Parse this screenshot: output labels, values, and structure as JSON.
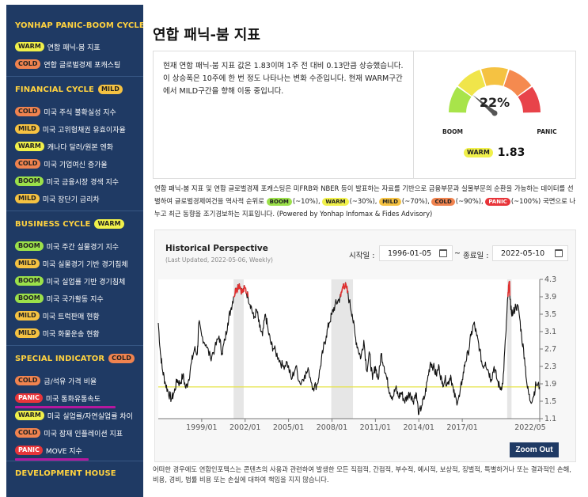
{
  "sidebar": {
    "sections": [
      {
        "title": "YONHAP PANIC-BOOM CYCLE",
        "tag": "",
        "items": [
          {
            "tag": "WARM",
            "label": "연합 패닉-붐 지표"
          },
          {
            "tag": "COLD",
            "label": "연합 글로벌경제 포캐스팅"
          }
        ]
      },
      {
        "title": "FINANCIAL CYCLE",
        "tag": "MILD",
        "items": [
          {
            "tag": "COLD",
            "label": "미국 주식 불확실성 지수"
          },
          {
            "tag": "MILD",
            "label": "미국 고위험채권 유효이자율"
          },
          {
            "tag": "WARM",
            "label": "캐나다 달러/원본 엔화"
          },
          {
            "tag": "COLD",
            "label": "미국 기업여신 증가율"
          },
          {
            "tag": "BOOM",
            "label": "미국 금융시장 경색 지수"
          },
          {
            "tag": "MILD",
            "label": "미국 장단기 금리차"
          }
        ]
      },
      {
        "title": "BUSINESS CYCLE",
        "tag": "WARM",
        "items": [
          {
            "tag": "BOOM",
            "label": "미국 주간 실물경기 지수"
          },
          {
            "tag": "MILD",
            "label": "미국 실물경기 기반 경기침체"
          },
          {
            "tag": "BOOM",
            "label": "미국 실업률 기반 경기침체"
          },
          {
            "tag": "BOOM",
            "label": "미국 국가활동 지수"
          },
          {
            "tag": "MILD",
            "label": "미국 트럭판매 현황"
          },
          {
            "tag": "MILD",
            "label": "미국 화물운송 현황"
          }
        ]
      },
      {
        "title": "SPECIAL INDICATOR",
        "tag": "COLD",
        "items": [
          {
            "tag": "COLD",
            "label": "금/석유 가격 비율"
          },
          {
            "tag": "PANIC",
            "label": "미국 통화유통속도"
          },
          {
            "tag": "WARM",
            "label": "미국 실업률/자연실업률 차이"
          },
          {
            "tag": "COLD",
            "label": "미국 잠재 인플레이션 지표"
          },
          {
            "tag": "PANIC",
            "label": "MOVE 지수"
          }
        ]
      },
      {
        "title": "DEVELOPMENT HOUSE",
        "tag": "",
        "items": []
      }
    ]
  },
  "main": {
    "title": "연합 패닉-붐 지표",
    "summary": "현재 연합 패닉-붐 지표 값은 1.83이며 1주 전 대비 0.13만큼 상승했습니다. 이 상승폭은 10주에 한 번 정도 나타나는 변화 수준입니다. 현재 WARM구간에서 MILD구간을 향해 이동 중입니다.",
    "gauge": {
      "percent": 22,
      "percent_label": "22%",
      "left_label": "BOOM",
      "right_label": "PANIC",
      "status": "WARM",
      "value": "1.83",
      "colors": [
        "#a8e44a",
        "#f0e54a",
        "#f5c242",
        "#f58a4f",
        "#e8434a"
      ]
    },
    "description": {
      "part1": "연합 패닉-붐 지표 및 연합 글로벌경제 포캐스팅은 미FRB와 NBER 등이 발표하는 자료를 기반으로 금융부문과 실물부문의 순환을 가능하는 데이터를 선별하여 글로벌경제여건을 역사적 순위로",
      "levels": [
        {
          "tag": "BOOM",
          "text": "(~10%),"
        },
        {
          "tag": "WARM",
          "text": "(~30%),"
        },
        {
          "tag": "MILD",
          "text": "(~70%),"
        },
        {
          "tag": "COLD",
          "text": "(~90%),"
        },
        {
          "tag": "PANIC",
          "text": "(~100%)"
        }
      ],
      "part2": "국면으로 나누고 최근 동향을 조기경보하는 지표입니다. (Powered by Yonhap Infomax & Fides Advisory)"
    },
    "chart_panel": {
      "title": "Historical Perspective",
      "updated": "(Last Updated, 2022-05-06, Weekly)",
      "start_label": "시작일 :",
      "start_date": "1996-01-05",
      "tilde": "~",
      "end_label": "종료일 :",
      "end_date": "2022-05-10",
      "zoom_out": "Zoom Out"
    },
    "disclaimer": "어떠한 경우에도 연합인포맥스는 콘텐츠의 사용과 관련하여 발생한 모든 직접적, 간접적, 부수적, 예시적, 보상적, 징벌적, 특별하거나 또는 결과적인 손해, 비용, 경비, 법률 비용 또는 손실에 대하여 책임을 지지 않습니다."
  },
  "chart_data": {
    "type": "line",
    "x_start": 1996.0,
    "x_end": 2022.35,
    "xticks": [
      "1999/01",
      "2002/01",
      "2005/01",
      "2008/01",
      "2011/01",
      "2014/01",
      "2017/01",
      "2022/05"
    ],
    "xtick_values": [
      1999.0,
      2002.0,
      2005.0,
      2008.0,
      2011.0,
      2014.0,
      2017.0,
      2022.35
    ],
    "ylim": [
      1.1,
      4.3
    ],
    "yticks": [
      1.1,
      1.5,
      1.9,
      2.3,
      2.7,
      3.1,
      3.5,
      3.9,
      4.3
    ],
    "ytick_labels": [
      "1.1",
      "1.5",
      "1.9",
      "2.3",
      "2.7",
      "3.1",
      "3.5",
      "3.9",
      "4.3"
    ],
    "reference_line": 1.83,
    "recessions": [
      [
        2001.2,
        2001.9
      ],
      [
        2007.95,
        2009.45
      ],
      [
        2020.1,
        2020.4
      ]
    ],
    "x": [
      1996.0,
      1996.15,
      1996.3,
      1996.5,
      1996.7,
      1996.9,
      1997.1,
      1997.3,
      1997.5,
      1997.7,
      1997.9,
      1998.1,
      1998.3,
      1998.5,
      1998.7,
      1998.8,
      1999.0,
      1999.3,
      1999.6,
      1999.9,
      2000.2,
      2000.4,
      2000.6,
      2000.8,
      2001.0,
      2001.2,
      2001.4,
      2001.6,
      2001.8,
      2002.0,
      2002.2,
      2002.4,
      2002.6,
      2002.8,
      2003.0,
      2003.2,
      2003.4,
      2003.6,
      2003.8,
      2004.0,
      2004.3,
      2004.6,
      2004.9,
      2005.2,
      2005.5,
      2005.8,
      2006.1,
      2006.4,
      2006.7,
      2007.0,
      2007.2,
      2007.4,
      2007.6,
      2007.8,
      2008.0,
      2008.2,
      2008.4,
      2008.6,
      2008.8,
      2009.0,
      2009.2,
      2009.4,
      2009.6,
      2009.8,
      2010.0,
      2010.2,
      2010.4,
      2010.6,
      2010.8,
      2011.0,
      2011.2,
      2011.4,
      2011.6,
      2011.8,
      2012.0,
      2012.2,
      2012.4,
      2012.6,
      2012.8,
      2013.0,
      2013.2,
      2013.4,
      2013.6,
      2013.8,
      2014.0,
      2014.2,
      2014.4,
      2014.6,
      2014.8,
      2015.0,
      2015.2,
      2015.4,
      2015.6,
      2015.8,
      2016.0,
      2016.2,
      2016.4,
      2016.6,
      2016.8,
      2017.0,
      2017.2,
      2017.4,
      2017.6,
      2017.8,
      2018.0,
      2018.2,
      2018.4,
      2018.6,
      2018.8,
      2019.0,
      2019.2,
      2019.4,
      2019.6,
      2019.8,
      2020.0,
      2020.15,
      2020.25,
      2020.35,
      2020.5,
      2020.7,
      2020.9,
      2021.1,
      2021.3,
      2021.5,
      2021.7,
      2021.9,
      2022.1,
      2022.35
    ],
    "y": [
      3.3,
      2.6,
      2.2,
      1.9,
      1.7,
      1.55,
      1.7,
      2.0,
      1.9,
      2.1,
      1.8,
      2.0,
      2.4,
      2.7,
      2.6,
      3.3,
      3.0,
      2.8,
      2.5,
      2.7,
      3.0,
      2.6,
      2.9,
      3.3,
      3.6,
      3.9,
      4.1,
      4.2,
      4.0,
      4.1,
      3.9,
      3.7,
      3.4,
      3.6,
      3.2,
      3.0,
      3.5,
      3.1,
      2.8,
      2.7,
      2.5,
      2.3,
      2.4,
      2.0,
      2.3,
      1.9,
      2.1,
      2.2,
      1.8,
      1.9,
      2.3,
      2.7,
      3.0,
      3.3,
      3.5,
      3.7,
      3.8,
      3.9,
      4.2,
      4.1,
      3.8,
      3.5,
      3.0,
      2.7,
      2.5,
      2.9,
      2.2,
      2.6,
      2.0,
      2.3,
      2.0,
      2.6,
      2.3,
      2.0,
      1.7,
      1.6,
      1.8,
      1.6,
      1.7,
      1.5,
      1.6,
      1.7,
      1.5,
      1.7,
      1.2,
      1.4,
      1.6,
      2.0,
      2.4,
      2.3,
      2.1,
      2.3,
      1.9,
      2.0,
      1.9,
      2.1,
      1.7,
      1.5,
      1.6,
      2.0,
      2.4,
      2.6,
      3.0,
      3.3,
      3.0,
      2.7,
      2.3,
      2.4,
      2.2,
      2.0,
      2.3,
      2.0,
      1.8,
      1.9,
      3.0,
      3.9,
      4.25,
      3.6,
      3.5,
      3.7,
      3.6,
      3.0,
      2.5,
      1.8,
      1.5,
      1.6,
      1.9,
      1.83
    ],
    "highlight_threshold": 3.9
  }
}
